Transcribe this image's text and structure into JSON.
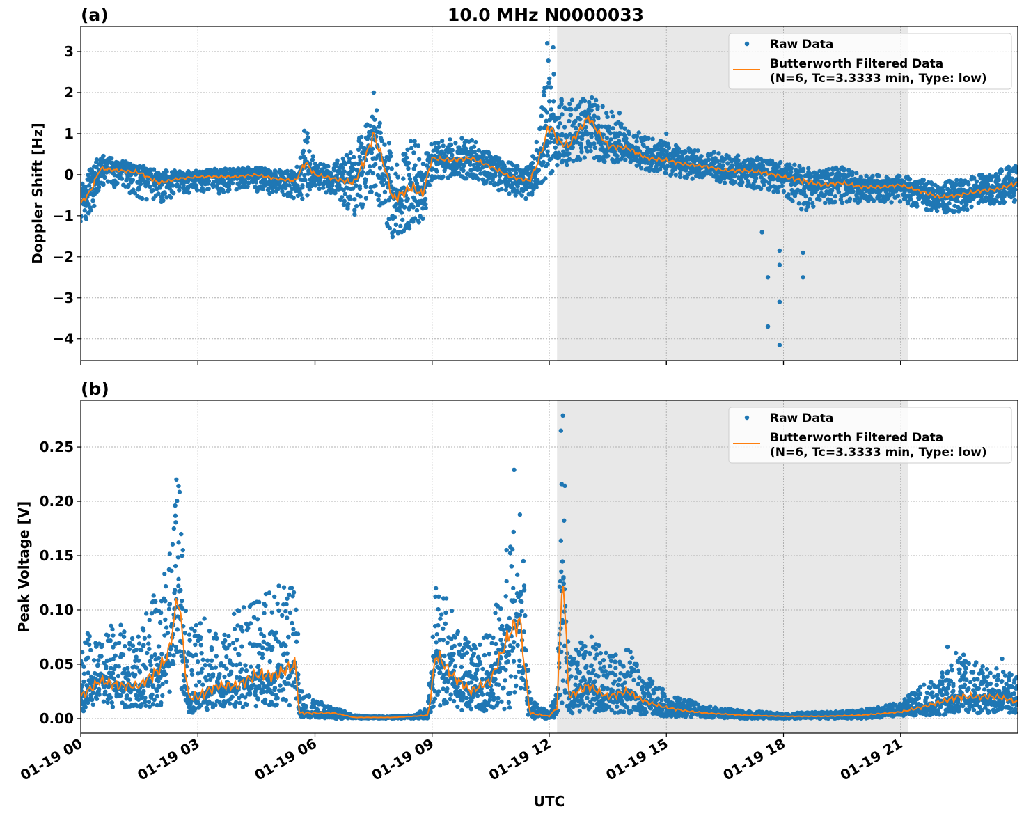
{
  "title": "10.0 MHz N0000033",
  "xlabel": "UTC",
  "x_tick_labels": [
    "01-19 00",
    "01-19 03",
    "01-19 06",
    "01-19 09",
    "01-19 12",
    "01-19 15",
    "01-19 18",
    "01-19 21"
  ],
  "x_ticks_hours": [
    0,
    3,
    6,
    9,
    12,
    15,
    18,
    21
  ],
  "xlim_hours": [
    0,
    24
  ],
  "shaded_span_hours": [
    12.2,
    21.2
  ],
  "colors": {
    "raw": "#1f77b4",
    "filtered": "#ff7f0e",
    "shade": "#e8e8e8"
  },
  "legend": {
    "raw": "Raw Data",
    "filtered_line1": "Butterworth Filtered Data",
    "filtered_line2": "(N=6, Tc=3.3333 min, Type: low)",
    "placement": "top-right"
  },
  "chart_data": [
    {
      "type": "scatter+line",
      "panel_label": "(a)",
      "ylabel": "Doppler Shift [Hz]",
      "ylim": [
        -4.53,
        3.61
      ],
      "yticks": [
        -4,
        -3,
        -2,
        -1,
        0,
        1,
        2,
        3
      ],
      "ytick_labels": [
        "−4",
        "−3",
        "−2",
        "−1",
        "0",
        "1",
        "2",
        "3"
      ],
      "grid": true,
      "x_hours": [
        0,
        0.25,
        0.5,
        1,
        1.5,
        2,
        2.5,
        3,
        3.5,
        4,
        4.5,
        5,
        5.5,
        5.75,
        6,
        6.5,
        7,
        7.25,
        7.5,
        7.75,
        8,
        8.5,
        8.75,
        9,
        9.5,
        10,
        10.5,
        11,
        11.5,
        11.75,
        12,
        12.25,
        12.5,
        13,
        13.5,
        14,
        14.5,
        15,
        15.5,
        16,
        16.5,
        17,
        17.5,
        18,
        18.5,
        19,
        19.5,
        20,
        20.5,
        21,
        21.5,
        22,
        22.5,
        23,
        23.5,
        24
      ],
      "filtered": [
        -0.7,
        -0.4,
        0.15,
        0.1,
        0.05,
        -0.2,
        -0.1,
        -0.05,
        -0.05,
        -0.05,
        0.0,
        -0.1,
        -0.15,
        0.3,
        0.0,
        -0.1,
        -0.2,
        0.3,
        1.0,
        0.3,
        -0.6,
        -0.3,
        -0.5,
        0.4,
        0.35,
        0.4,
        0.2,
        -0.05,
        -0.15,
        0.4,
        1.2,
        0.8,
        0.7,
        1.4,
        0.7,
        0.65,
        0.4,
        0.35,
        0.25,
        0.2,
        0.1,
        0.1,
        0.05,
        -0.05,
        -0.15,
        -0.25,
        -0.2,
        -0.3,
        -0.3,
        -0.25,
        -0.4,
        -0.55,
        -0.5,
        -0.4,
        -0.35,
        -0.2
      ],
      "raw_max": [
        -0.2,
        0.2,
        0.5,
        0.35,
        0.25,
        0.1,
        0.1,
        0.1,
        0.15,
        0.15,
        0.2,
        0.1,
        0.1,
        1.2,
        0.3,
        0.3,
        0.6,
        1.2,
        2.0,
        1.0,
        0.6,
        0.9,
        0.6,
        0.8,
        0.9,
        0.9,
        0.5,
        0.3,
        0.2,
        1.5,
        3.0,
        2.2,
        1.8,
        2.0,
        1.6,
        1.2,
        0.9,
        0.8,
        0.65,
        0.6,
        0.5,
        0.45,
        0.4,
        0.3,
        0.2,
        0.1,
        0.2,
        0.0,
        0.0,
        0.0,
        -0.1,
        -0.2,
        -0.1,
        0.0,
        0.1,
        0.3
      ],
      "raw_min": [
        -1.2,
        -1.0,
        -0.3,
        -0.3,
        -0.6,
        -0.7,
        -0.5,
        -0.4,
        -0.5,
        -0.4,
        -0.4,
        -0.5,
        -0.6,
        -0.6,
        -0.4,
        -0.5,
        -1.0,
        -0.8,
        -0.4,
        -1.0,
        -1.6,
        -1.3,
        -1.3,
        -0.1,
        -0.1,
        -0.1,
        -0.3,
        -0.5,
        -0.6,
        -0.3,
        0.0,
        0.2,
        0.2,
        0.4,
        0.3,
        0.3,
        0.1,
        0.0,
        -0.1,
        -0.1,
        -0.2,
        -0.3,
        -0.4,
        -0.5,
        -0.9,
        -0.8,
        -0.7,
        -0.7,
        -0.7,
        -0.7,
        -0.8,
        -1.0,
        -0.9,
        -0.8,
        -0.7,
        -0.7
      ],
      "outliers": [
        [
          17.45,
          -1.4
        ],
        [
          17.6,
          -2.5
        ],
        [
          17.6,
          -3.7
        ],
        [
          17.9,
          -1.85
        ],
        [
          17.9,
          -2.2
        ],
        [
          17.9,
          -3.1
        ],
        [
          17.9,
          -4.15
        ],
        [
          18.5,
          -1.9
        ],
        [
          18.5,
          -2.5
        ],
        [
          11.95,
          3.2
        ],
        [
          12.1,
          3.1
        ],
        [
          15.0,
          1.0
        ],
        [
          13.8,
          1.5
        ]
      ]
    },
    {
      "type": "scatter+line",
      "panel_label": "(b)",
      "ylabel": "Peak Voltage [V]",
      "ylim": [
        -0.0135,
        0.293
      ],
      "yticks": [
        0,
        0.05,
        0.1,
        0.15,
        0.2,
        0.25
      ],
      "ytick_labels": [
        "0.00",
        "0.05",
        "0.10",
        "0.15",
        "0.20",
        "0.25"
      ],
      "grid": true,
      "x_hours": [
        0,
        0.5,
        1,
        1.5,
        2,
        2.25,
        2.5,
        2.75,
        3,
        3.5,
        4,
        4.5,
        5,
        5.5,
        5.6,
        6,
        6.5,
        7,
        7.5,
        8,
        8.5,
        8.9,
        9.1,
        9.5,
        10,
        10.5,
        11,
        11.25,
        11.5,
        12,
        12.2,
        12.35,
        12.5,
        13,
        13.5,
        14,
        14.5,
        15,
        15.5,
        16,
        17,
        18,
        19,
        20,
        21,
        21.5,
        22,
        22.5,
        23,
        23.5,
        24
      ],
      "filtered": [
        0.02,
        0.035,
        0.03,
        0.03,
        0.045,
        0.06,
        0.115,
        0.02,
        0.02,
        0.03,
        0.03,
        0.04,
        0.04,
        0.05,
        0.005,
        0.005,
        0.005,
        0.001,
        0.001,
        0.001,
        0.002,
        0.003,
        0.06,
        0.04,
        0.025,
        0.035,
        0.08,
        0.09,
        0.005,
        0.002,
        0.01,
        0.14,
        0.02,
        0.03,
        0.02,
        0.025,
        0.015,
        0.01,
        0.007,
        0.005,
        0.003,
        0.002,
        0.002,
        0.003,
        0.006,
        0.01,
        0.015,
        0.02,
        0.02,
        0.02,
        0.015
      ],
      "raw_max": [
        0.08,
        0.09,
        0.09,
        0.08,
        0.13,
        0.15,
        0.22,
        0.08,
        0.1,
        0.08,
        0.1,
        0.11,
        0.12,
        0.135,
        0.03,
        0.017,
        0.01,
        0.003,
        0.002,
        0.002,
        0.003,
        0.01,
        0.14,
        0.1,
        0.07,
        0.08,
        0.17,
        0.23,
        0.02,
        0.005,
        0.03,
        0.28,
        0.06,
        0.08,
        0.06,
        0.065,
        0.04,
        0.025,
        0.018,
        0.012,
        0.007,
        0.005,
        0.006,
        0.008,
        0.015,
        0.03,
        0.04,
        0.065,
        0.05,
        0.05,
        0.04
      ],
      "raw_min": [
        0.005,
        0.01,
        0.01,
        0.01,
        0.01,
        0.02,
        0.03,
        0.005,
        0.005,
        0.01,
        0.01,
        0.01,
        0.01,
        0.01,
        0.001,
        0.001,
        0.0,
        0.0,
        0.0,
        0.0,
        0.0,
        0.0,
        0.01,
        0.01,
        0.005,
        0.005,
        0.01,
        0.01,
        0.0,
        0.0,
        0.0,
        0.005,
        0.005,
        0.005,
        0.005,
        0.005,
        0.003,
        0.002,
        0.001,
        0.001,
        0.0,
        0.0,
        0.0,
        0.0,
        0.002,
        0.003,
        0.003,
        0.005,
        0.005,
        0.005,
        0.005
      ],
      "outliers": [
        [
          2.45,
          0.22
        ],
        [
          12.35,
          0.279
        ],
        [
          12.3,
          0.265
        ],
        [
          11.1,
          0.229
        ],
        [
          22.2,
          0.066
        ],
        [
          23.6,
          0.055
        ]
      ]
    }
  ]
}
